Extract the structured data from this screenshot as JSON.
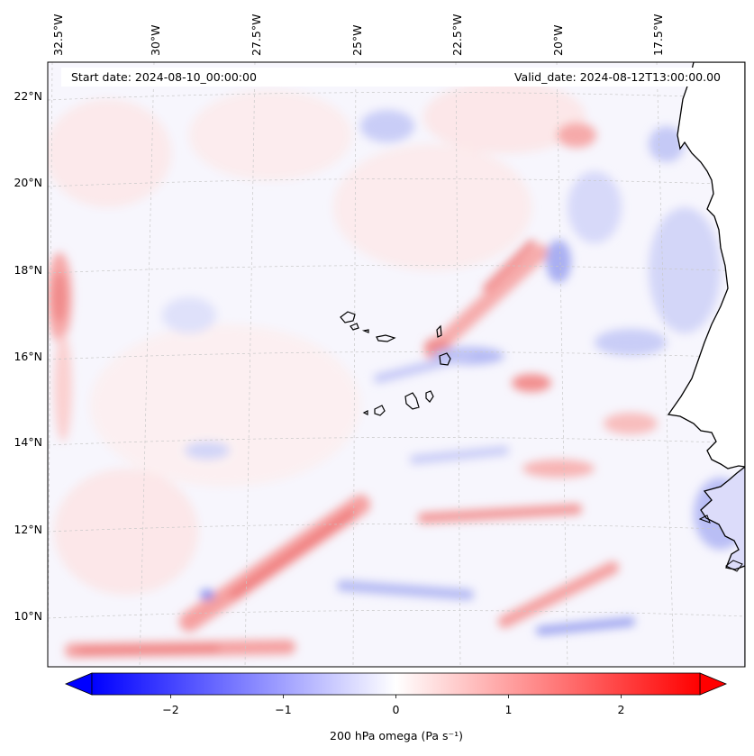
{
  "map": {
    "start_date_label": "Start date: 2024-08-10_00:00:00",
    "valid_date_label": "Valid_date: 2024-08-12T13:00:00.00",
    "lon_labels": [
      "32.5°W",
      "30°W",
      "27.5°W",
      "25°W",
      "22.5°W",
      "20°W",
      "17.5°W"
    ],
    "lat_labels": [
      "22°N",
      "20°N",
      "18°N",
      "16°N",
      "14°N",
      "12°N",
      "10°N"
    ],
    "lon_values": [
      -32.5,
      -30,
      -27.5,
      -25,
      -22.5,
      -20,
      -17.5
    ],
    "lat_values": [
      22,
      20,
      18,
      16,
      14,
      12,
      10
    ],
    "field": "200 hPa omega",
    "coastline_color": "#000000",
    "gridline_color": "#c8c8c8"
  },
  "colorbar": {
    "label": "200 hPa omega (Pa s⁻¹)",
    "min": -2.7,
    "max": 2.7,
    "ticks": [
      "−2",
      "−1",
      "0",
      "1",
      "2"
    ],
    "tick_values": [
      -2,
      -1,
      0,
      1,
      2
    ],
    "colormap": "bwr",
    "low_color": "#0000ff",
    "mid_color": "#ffffff",
    "high_color": "#ff0000"
  }
}
